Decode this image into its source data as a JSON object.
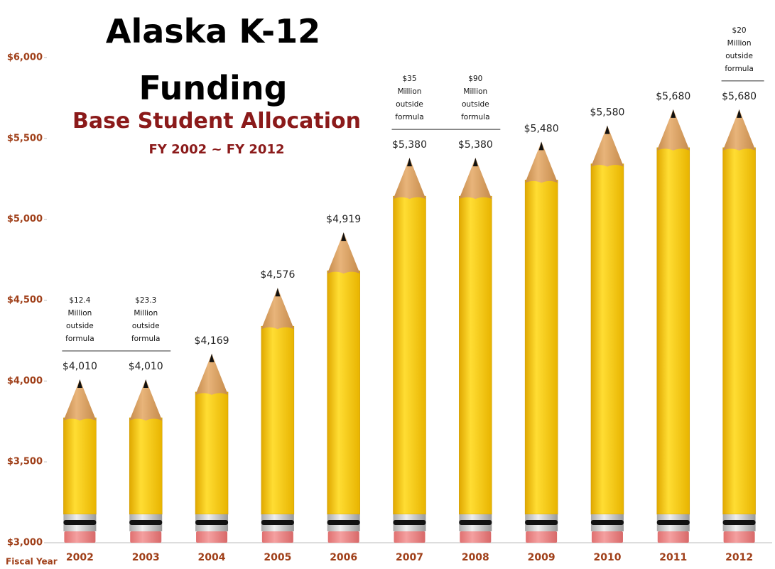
{
  "chart_data": {
    "type": "bar",
    "title": "Alaska K-12 Funding",
    "subtitle": "Base Student Allocation",
    "period": "FY 2002 ~ FY 2012",
    "x_label": "Fiscal Year",
    "categories": [
      "2002",
      "2003",
      "2004",
      "2005",
      "2006",
      "2007",
      "2008",
      "2009",
      "2010",
      "2011",
      "2012"
    ],
    "values": [
      4010,
      4010,
      4169,
      4576,
      4919,
      5380,
      5380,
      5480,
      5580,
      5680,
      5680
    ],
    "value_labels": [
      "$4,010",
      "$4,010",
      "$4,169",
      "$4,576",
      "$4,919",
      "$5,380",
      "$5,380",
      "$5,480",
      "$5,580",
      "$5,680",
      "$5,680"
    ],
    "notes": [
      "$12.4 Million outside formula",
      "$23.3 Million outside formula",
      null,
      null,
      null,
      "$35 Million outside formula",
      "$90 Million outside formula",
      null,
      null,
      null,
      "$20 Million outside formula"
    ],
    "color": "#f5c800",
    "ylim": [
      3000,
      6000
    ],
    "yticks": [
      {
        "value": 3000,
        "label": "$3,000"
      },
      {
        "value": 3500,
        "label": "$3,500"
      },
      {
        "value": 4000,
        "label": "$4,000"
      },
      {
        "value": 4500,
        "label": "$4,500"
      },
      {
        "value": 5000,
        "label": "$5,000"
      },
      {
        "value": 5500,
        "label": "$5,500"
      },
      {
        "value": 6000,
        "label": "$6,000"
      }
    ]
  }
}
